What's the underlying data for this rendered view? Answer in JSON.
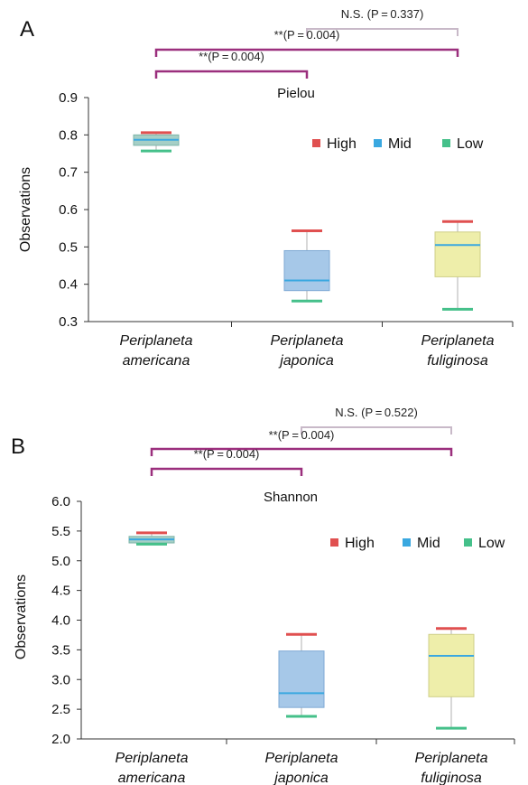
{
  "figure": {
    "panels": [
      {
        "letter": "A",
        "title": "Pielou"
      },
      {
        "letter": "B",
        "title": "Shannon"
      }
    ]
  },
  "chart_data": [
    {
      "type": "box",
      "panel": "A",
      "title": "Pielou",
      "ylabel": "Observations",
      "xlabel": "",
      "ylim": [
        0.3,
        0.9
      ],
      "yticks": [
        "0.3",
        "0.4",
        "0.5",
        "0.6",
        "0.7",
        "0.8",
        "0.9"
      ],
      "categories": [
        [
          "Periplaneta",
          "americana"
        ],
        [
          "Periplaneta",
          "japonica"
        ],
        [
          "Periplaneta",
          "fuliginosa"
        ]
      ],
      "legend": {
        "position": "top-right",
        "entries": [
          {
            "name": "High",
            "color": "#e05050"
          },
          {
            "name": "Mid",
            "color": "#3aa8e0"
          },
          {
            "name": "Low",
            "color": "#45c08a"
          }
        ]
      },
      "boxes": [
        {
          "category": "Periplaneta americana",
          "max": 0.806,
          "q3": 0.8,
          "median": 0.787,
          "q1": 0.772,
          "min": 0.757,
          "fill": "#a6cfc6",
          "edge": "#7eb5a8"
        },
        {
          "category": "Periplaneta japonica",
          "max": 0.543,
          "q3": 0.49,
          "median": 0.41,
          "q1": 0.383,
          "min": 0.355,
          "fill": "#a6c8e8",
          "edge": "#7ea9d4"
        },
        {
          "category": "Periplaneta fuliginosa",
          "max": 0.568,
          "q3": 0.54,
          "median": 0.505,
          "q1": 0.42,
          "min": 0.333,
          "fill": "#eeeeaa",
          "edge": "#cfcf88"
        }
      ],
      "significance": [
        {
          "label": "N.S. (P = 0.337)",
          "from": 1,
          "to": 2,
          "color": "#c8b9c8"
        },
        {
          "label": "**(P = 0.004)",
          "from": 0,
          "to": 2,
          "color": "#9b2f7d"
        },
        {
          "label": "**(P = 0.004)",
          "from": 0,
          "to": 1,
          "color": "#9b2f7d"
        }
      ]
    },
    {
      "type": "box",
      "panel": "B",
      "title": "Shannon",
      "ylabel": "Observations",
      "xlabel": "",
      "ylim": [
        2.0,
        6.0
      ],
      "yticks": [
        "2.0",
        "2.5",
        "3.0",
        "3.5",
        "4.0",
        "4.5",
        "5.0",
        "5.5",
        "6.0"
      ],
      "categories": [
        [
          "Periplaneta",
          "americana"
        ],
        [
          "Periplaneta",
          "japonica"
        ],
        [
          "Periplaneta",
          "fuliginosa"
        ]
      ],
      "legend": {
        "position": "top-right",
        "entries": [
          {
            "name": "High",
            "color": "#e05050"
          },
          {
            "name": "Mid",
            "color": "#3aa8e0"
          },
          {
            "name": "Low",
            "color": "#45c08a"
          }
        ]
      },
      "boxes": [
        {
          "category": "Periplaneta americana",
          "max": 5.47,
          "q3": 5.41,
          "median": 5.36,
          "q1": 5.3,
          "min": 5.28,
          "fill": "#a6cfc6",
          "edge": "#7eb5a8"
        },
        {
          "category": "Periplaneta japonica",
          "max": 3.76,
          "q3": 3.48,
          "median": 2.77,
          "q1": 2.53,
          "min": 2.38,
          "fill": "#a6c8e8",
          "edge": "#7ea9d4"
        },
        {
          "category": "Periplaneta fuliginosa",
          "max": 3.86,
          "q3": 3.76,
          "median": 3.4,
          "q1": 2.71,
          "min": 2.18,
          "fill": "#eeeeaa",
          "edge": "#cfcf88"
        }
      ],
      "significance": [
        {
          "label": "N.S. (P = 0.522)",
          "from": 1,
          "to": 2,
          "color": "#c8b9c8"
        },
        {
          "label": "**(P = 0.004)",
          "from": 0,
          "to": 2,
          "color": "#9b2f7d"
        },
        {
          "label": "**(P = 0.004)",
          "from": 0,
          "to": 1,
          "color": "#9b2f7d"
        }
      ]
    }
  ]
}
